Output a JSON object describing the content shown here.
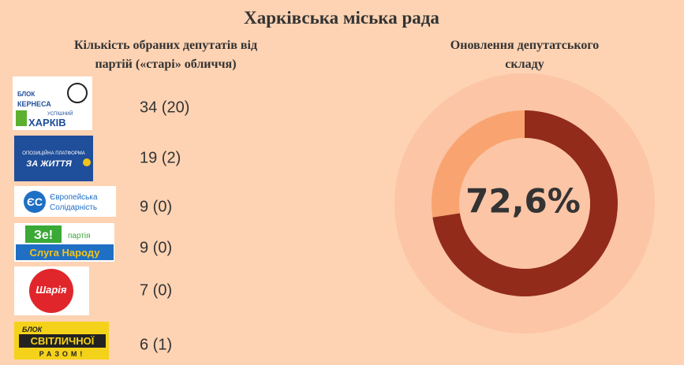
{
  "title": "Харківська міська рада",
  "left_heading": [
    "Кількість обраних депутатів від",
    "партій («старі» обличчя)"
  ],
  "parties": [
    {
      "logo_lines": [
        "БЛОК",
        "КЕРНЕСА",
        "УСПІШНИЙ",
        "ХАРКІВ"
      ],
      "count": "34 (20)"
    },
    {
      "logo_lines": [
        "ОПОЗИЦІЙНА ПЛАТФОРМА",
        "ЗА ЖИТТЯ"
      ],
      "count": "19 (2)"
    },
    {
      "logo_lines": [
        "Європейська",
        "Солідарність"
      ],
      "count": "9 (0)"
    },
    {
      "logo_lines": [
        "Зе!",
        "партія",
        "Слуга Народу"
      ],
      "count": "9 (0)"
    },
    {
      "logo_lines": [
        "Шарія"
      ],
      "count": "7 (0)"
    },
    {
      "logo_lines": [
        "БЛОК",
        "СВІТЛИЧНОЇ",
        "РАЗОМ!"
      ],
      "count": "6 (1)"
    }
  ],
  "donut": {
    "heading": [
      "Оновлення депутатського",
      "складу"
    ],
    "value": 72.6,
    "value_label": "72,6%",
    "max": 100,
    "color": "#922b1a",
    "rest_color": "#f9a470"
  }
}
